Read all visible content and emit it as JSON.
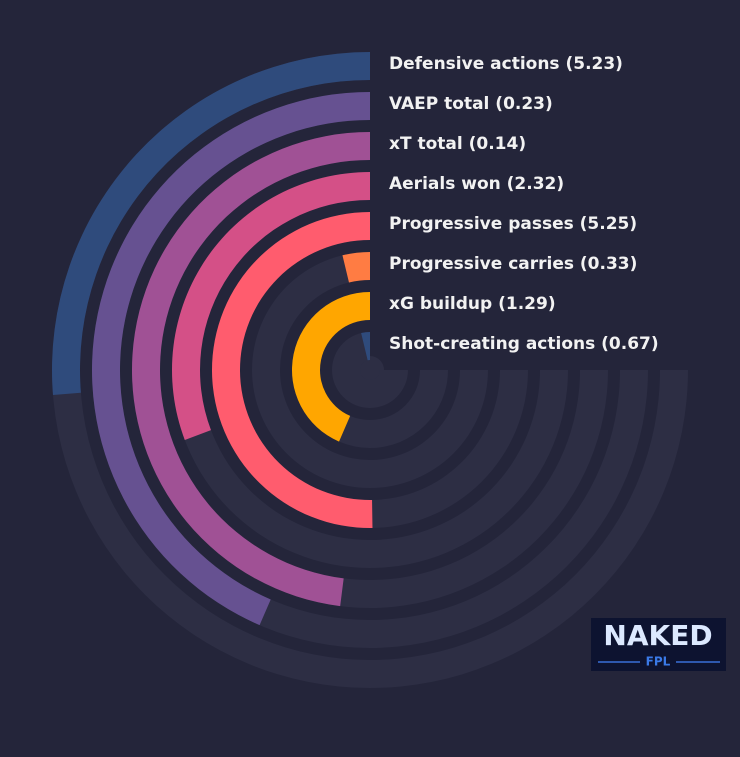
{
  "chart_data": {
    "type": "radial-bar",
    "labels": [
      "Defensive actions (5.23)",
      "VAEP total (0.23)",
      "xT total (0.14)",
      "Aerials won (2.32)",
      "Progressive passes (5.25)",
      "Progressive carries (0.33)",
      "xG buildup (1.29)",
      "Shot-creating actions (0.67)"
    ],
    "values": [
      35,
      58,
      64,
      41,
      67,
      5,
      58,
      5
    ],
    "rlim": [
      0,
      100
    ],
    "colors": [
      "#2f4b7c",
      "#665191",
      "#a05195",
      "#d45087",
      "#ff5c6e",
      "#ff7c43",
      "#ffa600",
      "#2f4b7c"
    ]
  },
  "logo": {
    "title": "NAKED",
    "subtitle": "FPL"
  }
}
